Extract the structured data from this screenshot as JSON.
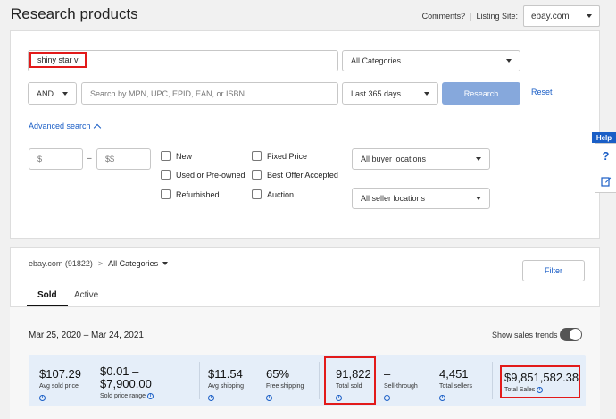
{
  "header": {
    "title": "Research products",
    "comments_label": "Comments?",
    "separator": "|",
    "listing_site_label": "Listing Site:",
    "listing_site_value": "ebay.com"
  },
  "search": {
    "keyword_value": "shiny star v",
    "category_value": "All Categories",
    "operator_value": "AND",
    "id_placeholder": "Search by MPN, UPC, EPID, EAN, or ISBN",
    "period_value": "Last 365 days",
    "research_button": "Research",
    "reset_link": "Reset",
    "advanced_search_link": "Advanced search",
    "min_price_placeholder": "$",
    "price_dash": "–",
    "max_price_placeholder": "$$",
    "conditions": [
      "New",
      "Used or Pre-owned",
      "Refurbished"
    ],
    "formats": [
      "Fixed Price",
      "Best Offer Accepted",
      "Auction"
    ],
    "buyer_locations_value": "All buyer locations",
    "seller_locations_value": "All seller locations"
  },
  "results": {
    "breadcrumb_site": "ebay.com (91822)",
    "breadcrumb_separator": ">",
    "breadcrumb_category": "All Categories",
    "filter_button": "Filter",
    "tabs": [
      {
        "label": "Sold",
        "active": true
      },
      {
        "label": "Active",
        "active": false
      }
    ],
    "date_range": "Mar 25, 2020 – Mar 24, 2021",
    "show_trends_label": "Show sales trends",
    "show_trends_on": true,
    "metrics": {
      "avg_sold_price": {
        "value": "$107.29",
        "label": "Avg sold price"
      },
      "sold_price_range": {
        "value_line1": "$0.01 –",
        "value_line2": "$7,900.00",
        "label": "Sold price range"
      },
      "avg_shipping": {
        "value": "$11.54",
        "label": "Avg shipping"
      },
      "free_shipping": {
        "value": "65%",
        "label": "Free shipping"
      },
      "total_sold": {
        "value": "91,822",
        "label": "Total sold"
      },
      "sell_through": {
        "value": "–",
        "label": "Sell-through"
      },
      "total_sellers": {
        "value": "4,451",
        "label": "Total sellers"
      },
      "total_sales": {
        "value": "$9,851,582.38",
        "label": "Total Sales"
      }
    }
  },
  "help": {
    "tab_label": "Help",
    "question_glyph": "?"
  },
  "colors": {
    "accent": "#1a5ec6",
    "research_button": "#86a8dc",
    "highlight": "#e21a1a",
    "metrics_bg": "#e5eef9"
  },
  "icons": [
    "caret-down-icon",
    "chevron-up-icon",
    "info-icon",
    "edit-icon",
    "help-icon"
  ]
}
